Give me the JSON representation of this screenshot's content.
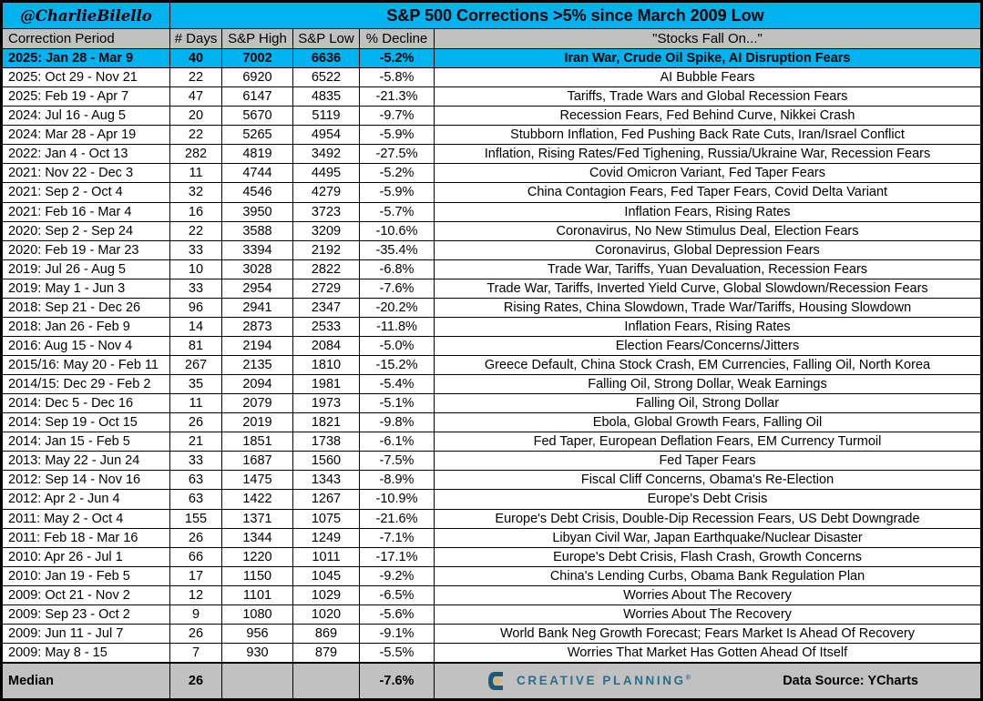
{
  "page": {
    "badge": "@CharlieBilello",
    "title": "S&P 500 Corrections >5% since March 2009 Low"
  },
  "chart_data": {
    "type": "table",
    "title": "S&P 500 Corrections >5% since March 2009 Low",
    "columns": [
      "Correction Period",
      "# Days",
      "S&P High",
      "S&P Low",
      "% Decline",
      "\"Stocks Fall On...\""
    ],
    "rows": [
      {
        "period": "2025: Jan 28 - Mar 9",
        "days": "40",
        "high": "7002",
        "low": "6636",
        "decline": "-5.2%",
        "reason": "Iran War, Crude Oil Spike, AI Disruption Fears",
        "highlight": true
      },
      {
        "period": "2025: Oct 29 - Nov 21",
        "days": "22",
        "high": "6920",
        "low": "6522",
        "decline": "-5.8%",
        "reason": "AI Bubble Fears",
        "highlight": false
      },
      {
        "period": "2025: Feb 19 - Apr 7",
        "days": "47",
        "high": "6147",
        "low": "4835",
        "decline": "-21.3%",
        "reason": "Tariffs, Trade Wars and Global Recession Fears",
        "highlight": false
      },
      {
        "period": "2024: Jul 16 - Aug 5",
        "days": "20",
        "high": "5670",
        "low": "5119",
        "decline": "-9.7%",
        "reason": "Recession Fears, Fed Behind Curve, Nikkei Crash",
        "highlight": false
      },
      {
        "period": "2024: Mar 28 - Apr 19",
        "days": "22",
        "high": "5265",
        "low": "4954",
        "decline": "-5.9%",
        "reason": "Stubborn Inflation, Fed Pushing Back Rate Cuts, Iran/Israel Conflict",
        "highlight": false
      },
      {
        "period": "2022: Jan 4 - Oct 13",
        "days": "282",
        "high": "4819",
        "low": "3492",
        "decline": "-27.5%",
        "reason": "Inflation, Rising Rates/Fed Tighening, Russia/Ukraine War, Recession Fears",
        "highlight": false
      },
      {
        "period": "2021: Nov 22 - Dec 3",
        "days": "11",
        "high": "4744",
        "low": "4495",
        "decline": "-5.2%",
        "reason": "Covid Omicron Variant, Fed Taper Fears",
        "highlight": false
      },
      {
        "period": "2021: Sep 2 - Oct 4",
        "days": "32",
        "high": "4546",
        "low": "4279",
        "decline": "-5.9%",
        "reason": "China Contagion Fears, Fed Taper Fears, Covid Delta Variant",
        "highlight": false
      },
      {
        "period": "2021: Feb 16 - Mar 4",
        "days": "16",
        "high": "3950",
        "low": "3723",
        "decline": "-5.7%",
        "reason": "Inflation Fears, Rising Rates",
        "highlight": false
      },
      {
        "period": "2020: Sep 2 - Sep 24",
        "days": "22",
        "high": "3588",
        "low": "3209",
        "decline": "-10.6%",
        "reason": "Coronavirus, No New Stimulus Deal, Election Fears",
        "highlight": false
      },
      {
        "period": "2020: Feb 19 - Mar 23",
        "days": "33",
        "high": "3394",
        "low": "2192",
        "decline": "-35.4%",
        "reason": "Coronavirus, Global Depression Fears",
        "highlight": false
      },
      {
        "period": "2019: Jul 26 - Aug 5",
        "days": "10",
        "high": "3028",
        "low": "2822",
        "decline": "-6.8%",
        "reason": "Trade War, Tariffs, Yuan Devaluation, Recession Fears",
        "highlight": false
      },
      {
        "period": "2019: May 1 - Jun 3",
        "days": "33",
        "high": "2954",
        "low": "2729",
        "decline": "-7.6%",
        "reason": "Trade War, Tariffs, Inverted Yield Curve, Global Slowdown/Recession Fears",
        "highlight": false
      },
      {
        "period": "2018: Sep 21 - Dec 26",
        "days": "96",
        "high": "2941",
        "low": "2347",
        "decline": "-20.2%",
        "reason": "Rising Rates, China Slowdown, Trade War/Tariffs, Housing Slowdown",
        "highlight": false
      },
      {
        "period": "2018: Jan 26 - Feb 9",
        "days": "14",
        "high": "2873",
        "low": "2533",
        "decline": "-11.8%",
        "reason": "Inflation Fears, Rising Rates",
        "highlight": false
      },
      {
        "period": "2016: Aug 15 - Nov 4",
        "days": "81",
        "high": "2194",
        "low": "2084",
        "decline": "-5.0%",
        "reason": "Election Fears/Concerns/Jitters",
        "highlight": false
      },
      {
        "period": "2015/16: May 20 - Feb 11",
        "days": "267",
        "high": "2135",
        "low": "1810",
        "decline": "-15.2%",
        "reason": "Greece Default, China Stock Crash, EM Currencies, Falling Oil, North Korea",
        "highlight": false
      },
      {
        "period": "2014/15: Dec 29 - Feb 2",
        "days": "35",
        "high": "2094",
        "low": "1981",
        "decline": "-5.4%",
        "reason": "Falling Oil, Strong Dollar, Weak Earnings",
        "highlight": false
      },
      {
        "period": "2014: Dec 5 - Dec 16",
        "days": "11",
        "high": "2079",
        "low": "1973",
        "decline": "-5.1%",
        "reason": "Falling Oil, Strong Dollar",
        "highlight": false
      },
      {
        "period": "2014: Sep 19 - Oct 15",
        "days": "26",
        "high": "2019",
        "low": "1821",
        "decline": "-9.8%",
        "reason": "Ebola, Global Growth Fears, Falling Oil",
        "highlight": false
      },
      {
        "period": "2014: Jan 15 - Feb 5",
        "days": "21",
        "high": "1851",
        "low": "1738",
        "decline": "-6.1%",
        "reason": "Fed Taper, European Deflation Fears, EM Currency Turmoil",
        "highlight": false
      },
      {
        "period": "2013: May 22 - Jun 24",
        "days": "33",
        "high": "1687",
        "low": "1560",
        "decline": "-7.5%",
        "reason": "Fed Taper Fears",
        "highlight": false
      },
      {
        "period": "2012: Sep 14 - Nov 16",
        "days": "63",
        "high": "1475",
        "low": "1343",
        "decline": "-8.9%",
        "reason": "Fiscal Cliff Concerns, Obama's Re-Election",
        "highlight": false
      },
      {
        "period": "2012: Apr 2 - Jun 4",
        "days": "63",
        "high": "1422",
        "low": "1267",
        "decline": "-10.9%",
        "reason": "Europe's Debt Crisis",
        "highlight": false
      },
      {
        "period": "2011: May 2 - Oct 4",
        "days": "155",
        "high": "1371",
        "low": "1075",
        "decline": "-21.6%",
        "reason": "Europe's Debt Crisis, Double-Dip Recession Fears, US Debt Downgrade",
        "highlight": false
      },
      {
        "period": "2011: Feb 18 - Mar 16",
        "days": "26",
        "high": "1344",
        "low": "1249",
        "decline": "-7.1%",
        "reason": "Libyan Civil War, Japan Earthquake/Nuclear Disaster",
        "highlight": false
      },
      {
        "period": "2010: Apr 26 - Jul 1",
        "days": "66",
        "high": "1220",
        "low": "1011",
        "decline": "-17.1%",
        "reason": "Europe's Debt Crisis, Flash Crash, Growth Concerns",
        "highlight": false
      },
      {
        "period": "2010: Jan 19 - Feb 5",
        "days": "17",
        "high": "1150",
        "low": "1045",
        "decline": "-9.2%",
        "reason": "China's Lending Curbs, Obama Bank Regulation Plan",
        "highlight": false
      },
      {
        "period": "2009: Oct 21 - Nov 2",
        "days": "12",
        "high": "1101",
        "low": "1029",
        "decline": "-6.5%",
        "reason": "Worries About The Recovery",
        "highlight": false
      },
      {
        "period": "2009: Sep 23 - Oct 2",
        "days": "9",
        "high": "1080",
        "low": "1020",
        "decline": "-5.6%",
        "reason": "Worries About The Recovery",
        "highlight": false
      },
      {
        "period": "2009: Jun 11 - Jul 7",
        "days": "26",
        "high": "956",
        "low": "869",
        "decline": "-9.1%",
        "reason": "World Bank Neg Growth Forecast; Fears Market Is Ahead Of Recovery",
        "highlight": false
      },
      {
        "period": "2009: May 8 - 15",
        "days": "7",
        "high": "930",
        "low": "879",
        "decline": "-5.5%",
        "reason": "Worries That Market Has Gotten Ahead Of Itself",
        "highlight": false
      }
    ],
    "median_row": {
      "label": "Median",
      "days": "26",
      "high": "",
      "low": "",
      "decline": "-7.6%"
    }
  },
  "footer": {
    "logo_text": "CREATIVE PLANNING",
    "logo_mark": "®",
    "data_source": "Data Source: YCharts"
  },
  "colors": {
    "accent_cyan": "#00b3ef",
    "header_gray": "#c1c1c1",
    "logo_teal": "#266f8f",
    "logo_dark": "#1d5a73",
    "logo_gold": "#d8b577"
  }
}
